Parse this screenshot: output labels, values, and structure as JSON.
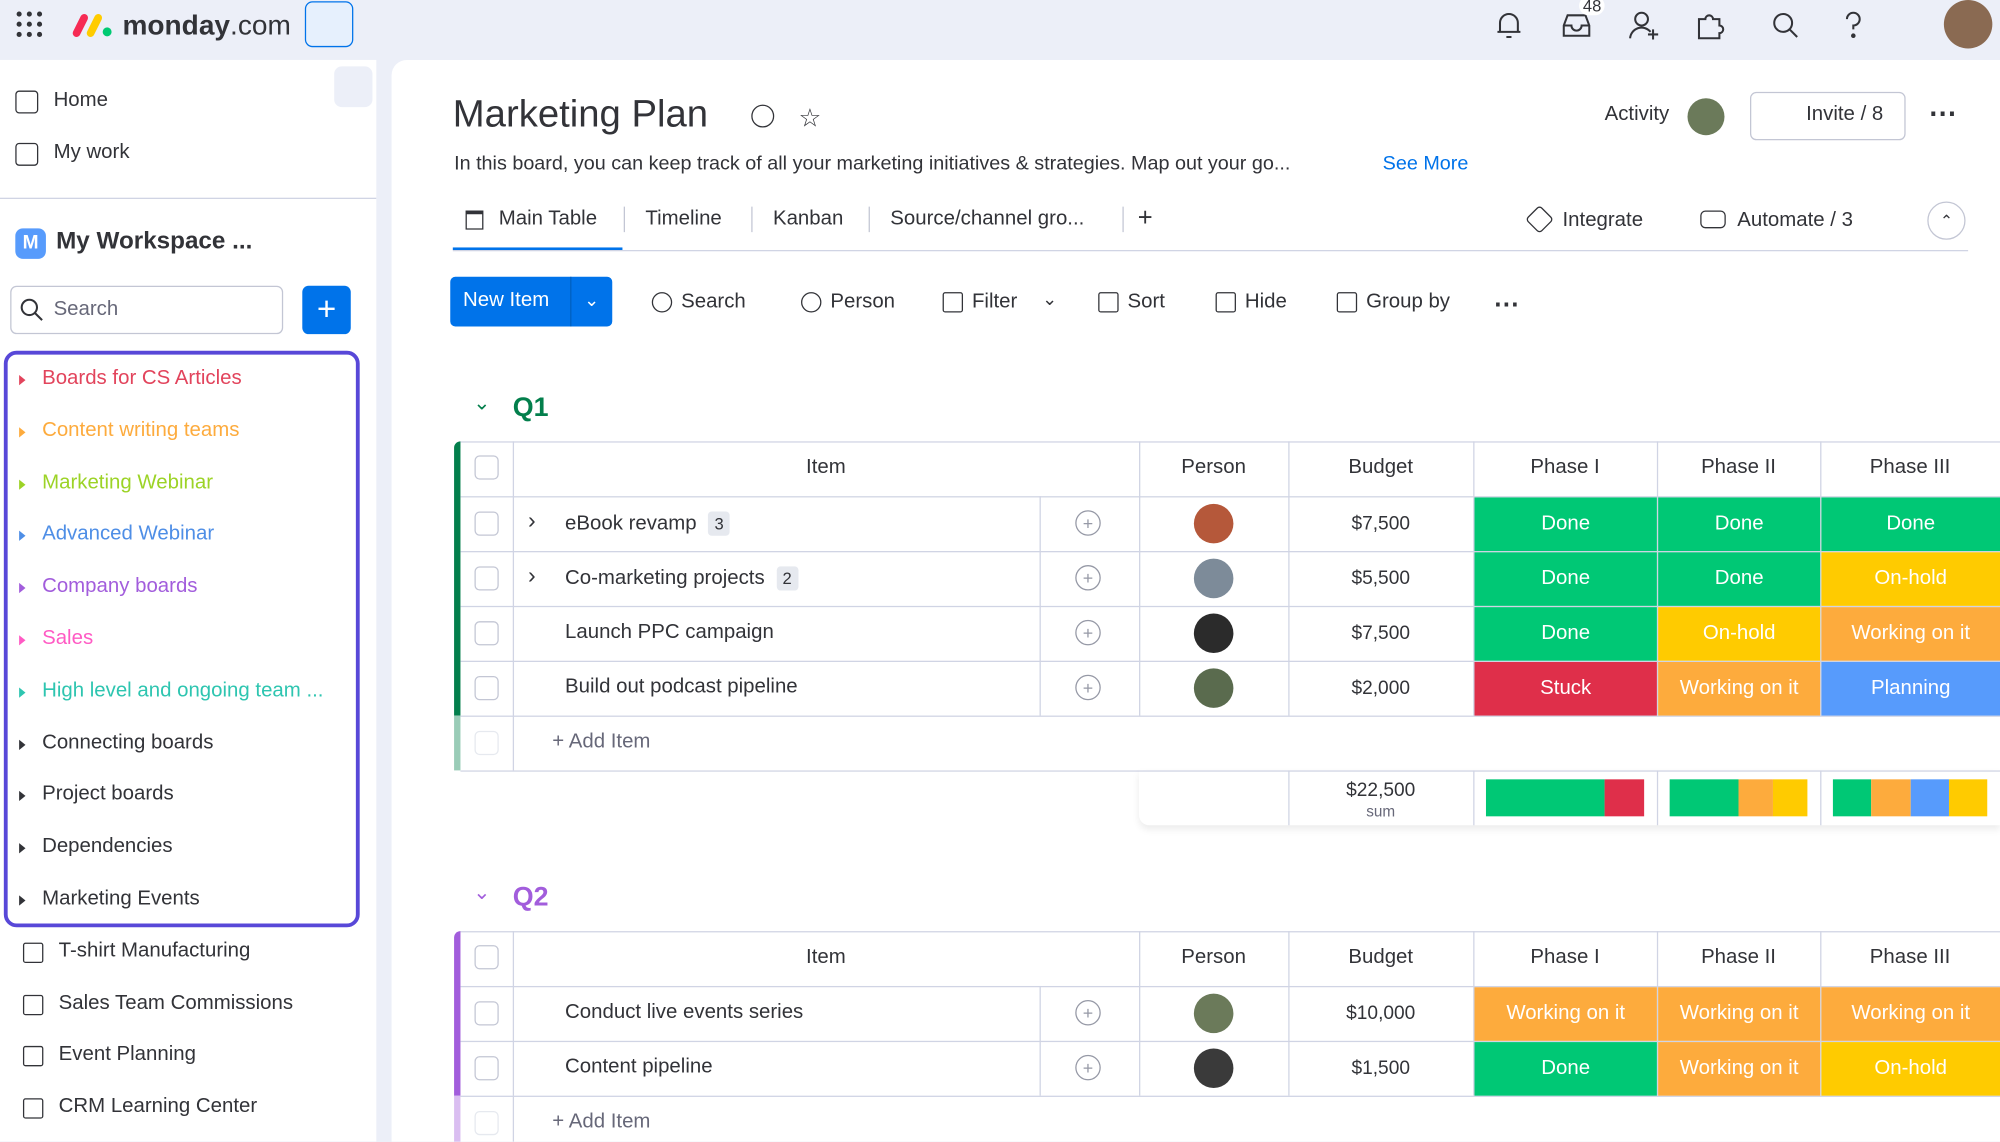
{
  "topbar": {
    "brand": "monday",
    "brand_suffix": ".com",
    "inbox_count": "48"
  },
  "sidebar": {
    "nav": [
      "Home",
      "My work"
    ],
    "workspace_initial": "M",
    "workspace": "My Workspace ...",
    "search_placeholder": "Search",
    "folders": [
      {
        "name": "Boards for CS Articles",
        "color": "#e2445c"
      },
      {
        "name": "Content writing teams",
        "color": "#fdab3d"
      },
      {
        "name": "Marketing Webinar",
        "color": "#9cd326"
      },
      {
        "name": "Advanced Webinar",
        "color": "#4e8ee6"
      },
      {
        "name": "Company boards",
        "color": "#a25ddc"
      },
      {
        "name": "Sales",
        "color": "#ff5ac4"
      },
      {
        "name": "High level and ongoing team ...",
        "color": "#2ec5b0"
      },
      {
        "name": "Connecting boards",
        "color": "#323338"
      },
      {
        "name": "Project boards",
        "color": "#323338"
      },
      {
        "name": "Dependencies",
        "color": "#323338"
      },
      {
        "name": "Marketing Events",
        "color": "#323338"
      }
    ],
    "boards": [
      "T-shirt Manufacturing",
      "Sales Team Commissions",
      "Event Planning",
      "CRM Learning Center"
    ]
  },
  "board": {
    "title": "Marketing Plan",
    "description": "In this board, you can keep track of all your marketing initiatives & strategies. Map out your go...",
    "see_more": "See More",
    "activity": "Activity",
    "invite": "Invite / 8",
    "views": [
      "Main Table",
      "Timeline",
      "Kanban",
      "Source/channel gro..."
    ],
    "integrate": "Integrate",
    "automate": "Automate / 3"
  },
  "toolbar": {
    "new_item": "New Item",
    "actions": [
      "Search",
      "Person",
      "Filter",
      "Sort",
      "Hide",
      "Group by"
    ]
  },
  "columns": [
    "Item",
    "Person",
    "Budget",
    "Phase I",
    "Phase II",
    "Phase III"
  ],
  "status_colors": {
    "Done": "#00c875",
    "Working on it": "#fdab3d",
    "Planning": "#579bfc",
    "On-hold": "#ffcb00",
    "Stuck": "#df2f4a"
  },
  "groups": [
    {
      "name": "Q1",
      "color": "#037f4c",
      "add_item": "+ Add Item",
      "sum": "$22,500",
      "sum_label": "sum",
      "rows": [
        {
          "item": "eBook revamp",
          "subitems": "3",
          "budget": "$7,500",
          "phases": [
            "Done",
            "Done",
            "Done"
          ]
        },
        {
          "item": "Co-marketing projects",
          "subitems": "2",
          "budget": "$5,500",
          "phases": [
            "Done",
            "Done",
            "On-hold"
          ]
        },
        {
          "item": "Launch PPC campaign",
          "budget": "$7,500",
          "phases": [
            "Done",
            "On-hold",
            "Working on it"
          ]
        },
        {
          "item": "Build out podcast pipeline",
          "budget": "$2,000",
          "phases": [
            "Stuck",
            "Working on it",
            "Planning"
          ]
        }
      ]
    },
    {
      "name": "Q2",
      "color": "#a25ddc",
      "add_item": "+ Add Item",
      "rows": [
        {
          "item": "Conduct live events series",
          "budget": "$10,000",
          "phases": [
            "Working on it",
            "Working on it",
            "Working on it"
          ]
        },
        {
          "item": "Content pipeline",
          "budget": "$1,500",
          "phases": [
            "Done",
            "Working on it",
            "On-hold"
          ]
        }
      ]
    }
  ]
}
